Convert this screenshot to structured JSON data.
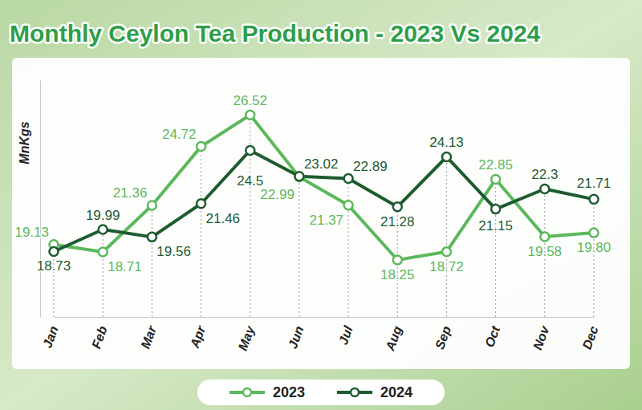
{
  "chart_data": {
    "type": "line",
    "title": "Monthly Ceylon Tea Production - 2023 Vs 2024",
    "y_label": "MnKgs",
    "categories": [
      "Jan",
      "Feb",
      "Mar",
      "Apr",
      "May",
      "Jun",
      "Jul",
      "Aug",
      "Sep",
      "Oct",
      "Nov",
      "Dec"
    ],
    "series": [
      {
        "name": "2023",
        "color": "#5cb85c",
        "marker": "circle",
        "values": [
          19.13,
          18.71,
          21.36,
          24.72,
          26.52,
          22.99,
          21.37,
          18.25,
          18.72,
          22.85,
          19.58,
          19.8
        ],
        "value_labels": [
          "19.13",
          "18.71",
          "21.36",
          "24.72",
          "26.52",
          "22.99",
          "21.37",
          "18.25",
          "18.72",
          "22.85",
          "19.58",
          "19.80"
        ]
      },
      {
        "name": "2024",
        "color": "#1d5b30",
        "marker": "circle",
        "values": [
          18.73,
          19.99,
          19.56,
          21.46,
          24.5,
          23.02,
          22.89,
          21.28,
          24.13,
          21.15,
          22.3,
          21.71
        ]
      }
    ],
    "ylim": [
      15,
      28.5
    ],
    "grid": true,
    "legend": "bottom",
    "data_labels": true,
    "tick_labels": "x"
  }
}
